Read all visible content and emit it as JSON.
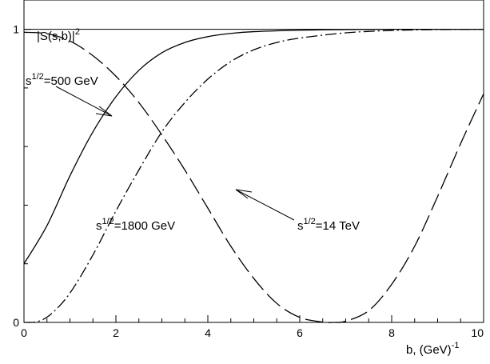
{
  "chart_data": {
    "type": "line",
    "title": "",
    "ylabel": {
      "base": "|S(s,b)|",
      "sup": "2"
    },
    "xlabel": {
      "base": "b, (GeV)",
      "sup": "-1"
    },
    "xlim": [
      0,
      10
    ],
    "ylim": [
      0,
      1.1
    ],
    "x_ticks": [
      0,
      2,
      4,
      6,
      8,
      10
    ],
    "x_tick_labels": [
      "0",
      "2",
      "4",
      "6",
      "8",
      "10"
    ],
    "y_ticks": [
      0,
      1
    ],
    "y_tick_labels": [
      "0",
      "1"
    ],
    "reference_line": {
      "y": 1
    },
    "grid": false,
    "series": [
      {
        "style": "solid",
        "label": {
          "pre": "s",
          "sup": "1/2",
          "post": "=500 GeV"
        },
        "x": [
          0,
          0.5,
          1,
          1.5,
          2,
          2.5,
          3,
          3.5,
          4,
          4.5,
          5,
          6,
          7,
          8,
          9,
          10
        ],
        "y": [
          0.2,
          0.33,
          0.5,
          0.65,
          0.77,
          0.86,
          0.92,
          0.955,
          0.975,
          0.986,
          0.992,
          0.997,
          0.999,
          1.0,
          1.0,
          1.0
        ]
      },
      {
        "style": "dash-dot",
        "label": {
          "pre": "s",
          "sup": "1/2",
          "post": "=1800 GeV"
        },
        "x": [
          0,
          0.3,
          0.6,
          1,
          1.5,
          2,
          2.5,
          3,
          3.5,
          4,
          4.5,
          5,
          5.5,
          6,
          7,
          8,
          9,
          10
        ],
        "y": [
          0,
          0.003,
          0.03,
          0.1,
          0.23,
          0.38,
          0.52,
          0.65,
          0.75,
          0.83,
          0.89,
          0.93,
          0.955,
          0.97,
          0.988,
          0.996,
          0.999,
          1.0
        ]
      },
      {
        "style": "dashed",
        "label": {
          "pre": "s",
          "sup": "1/2",
          "post": "=14 TeV"
        },
        "x": [
          0,
          0.5,
          1,
          1.5,
          2,
          2.5,
          3,
          3.5,
          4,
          4.5,
          5,
          5.5,
          6,
          6.5,
          6.75,
          7,
          7.5,
          8,
          8.5,
          9,
          9.5,
          10
        ],
        "y": [
          0.99,
          0.985,
          0.96,
          0.91,
          0.84,
          0.75,
          0.64,
          0.52,
          0.39,
          0.26,
          0.15,
          0.065,
          0.017,
          0.001,
          0,
          0.004,
          0.04,
          0.13,
          0.26,
          0.43,
          0.61,
          0.78
        ]
      }
    ]
  }
}
